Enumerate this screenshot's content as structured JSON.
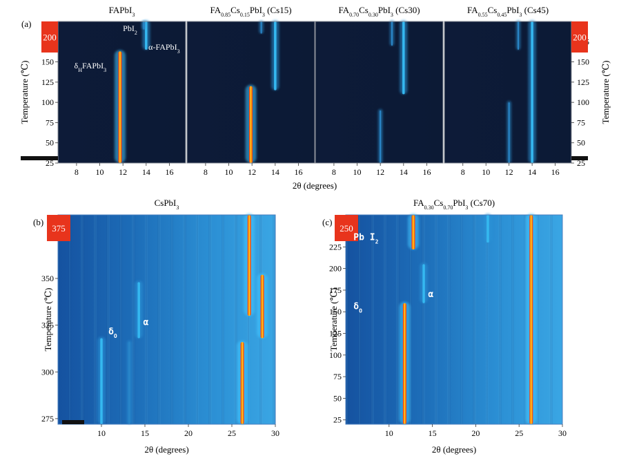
{
  "panel_labels": [
    "(a)",
    "(b)",
    "(c)"
  ],
  "chart_data": [
    {
      "type": "heatmap",
      "title": "FAPbI3",
      "title_parts": [
        [
          "FAPbI",
          ""
        ],
        [
          "3",
          "sub"
        ]
      ],
      "xlabel": "2θ (degrees)",
      "ylabel": "Temperature (℃)",
      "xlim": [
        6.4,
        17.4
      ],
      "ylim": [
        25,
        200
      ],
      "xticks": [
        8,
        10,
        12,
        14,
        16
      ],
      "yticks": [
        25,
        50,
        75,
        100,
        125,
        150,
        175
      ],
      "top_badge": "200",
      "annotations": [
        {
          "parts": [
            [
              "PbI",
              ""
            ],
            [
              "2",
              "sub"
            ]
          ],
          "x": 12.0,
          "y": 188
        },
        {
          "parts": [
            [
              "α-FAPbI",
              ""
            ],
            [
              "3",
              "sub"
            ]
          ],
          "x": 14.2,
          "y": 165
        },
        {
          "parts": [
            [
              "δ",
              ""
            ],
            [
              "H",
              "sub"
            ],
            [
              "FAPbI",
              ""
            ],
            [
              "3",
              "sub"
            ]
          ],
          "x": 7.8,
          "y": 142
        }
      ],
      "traces": [
        {
          "x": 11.75,
          "t_start": 25,
          "t_end": 163,
          "intensity": "very-strong"
        },
        {
          "x": 14.0,
          "t_start": 165,
          "t_end": 200,
          "intensity": "medium"
        },
        {
          "x": 13.8,
          "t_start": 190,
          "t_end": 200,
          "intensity": "weak"
        }
      ]
    },
    {
      "type": "heatmap",
      "title": "FA0.85Cs0.15PbI3 (Cs15)",
      "title_parts": [
        [
          "FA",
          ""
        ],
        [
          "0.85",
          "sub"
        ],
        [
          "Cs",
          ""
        ],
        [
          "0.15",
          "sub"
        ],
        [
          "PbI",
          ""
        ],
        [
          "3",
          "sub"
        ],
        [
          " (Cs15)",
          ""
        ]
      ],
      "xlabel": "2θ (degrees)",
      "ylabel": "Temperature (℃)",
      "xlim": [
        6.4,
        17.4
      ],
      "ylim": [
        25,
        200
      ],
      "xticks": [
        8,
        10,
        12,
        14,
        16
      ],
      "yticks": [
        25,
        50,
        75,
        100,
        125,
        150,
        175
      ],
      "traces": [
        {
          "x": 11.9,
          "t_start": 25,
          "t_end": 120,
          "intensity": "strong"
        },
        {
          "x": 14.0,
          "t_start": 115,
          "t_end": 200,
          "intensity": "medium"
        },
        {
          "x": 12.8,
          "t_start": 185,
          "t_end": 200,
          "intensity": "weak"
        }
      ]
    },
    {
      "type": "heatmap",
      "title": "FA0.70Cs0.30PbI3 (Cs30)",
      "title_parts": [
        [
          "FA",
          ""
        ],
        [
          "0.70",
          "sub"
        ],
        [
          "Cs",
          ""
        ],
        [
          "0.30",
          "sub"
        ],
        [
          "PbI",
          ""
        ],
        [
          "3",
          "sub"
        ],
        [
          " (Cs30)",
          ""
        ]
      ],
      "xlabel": "2θ (degrees)",
      "ylabel": "Temperature (℃)",
      "xlim": [
        6.4,
        17.4
      ],
      "ylim": [
        25,
        200
      ],
      "xticks": [
        8,
        10,
        12,
        14,
        16
      ],
      "yticks": [
        25,
        50,
        75,
        100,
        125,
        150,
        175
      ],
      "traces": [
        {
          "x": 14.0,
          "t_start": 110,
          "t_end": 200,
          "intensity": "medium"
        },
        {
          "x": 12.0,
          "t_start": 25,
          "t_end": 90,
          "intensity": "weak"
        },
        {
          "x": 13.0,
          "t_start": 170,
          "t_end": 200,
          "intensity": "weak"
        }
      ]
    },
    {
      "type": "heatmap",
      "title": "FA0.55Cs0.45PbI3 (Cs45)",
      "title_parts": [
        [
          "FA",
          ""
        ],
        [
          "0.55",
          "sub"
        ],
        [
          "Cs",
          ""
        ],
        [
          "0.45",
          "sub"
        ],
        [
          "PbI",
          ""
        ],
        [
          "3",
          "sub"
        ],
        [
          " (Cs45)",
          ""
        ]
      ],
      "xlabel": "2θ (degrees)",
      "ylabel": "Temperature (℃)",
      "xlim": [
        6.4,
        17.4
      ],
      "ylim": [
        25,
        200
      ],
      "xticks": [
        8,
        10,
        12,
        14,
        16
      ],
      "yticks": [
        25,
        50,
        75,
        100,
        125,
        150,
        175
      ],
      "top_badge": "200",
      "traces": [
        {
          "x": 14.0,
          "t_start": 25,
          "t_end": 200,
          "intensity": "medium"
        },
        {
          "x": 12.8,
          "t_start": 165,
          "t_end": 200,
          "intensity": "weak"
        },
        {
          "x": 12.0,
          "t_start": 25,
          "t_end": 100,
          "intensity": "weak"
        }
      ]
    },
    {
      "type": "heatmap",
      "title": "CsPbI3",
      "title_parts": [
        [
          "CsPbI",
          ""
        ],
        [
          "3",
          "sub"
        ]
      ],
      "xlabel": "2θ (degrees)",
      "ylabel": "Temperature (℃)",
      "xlim": [
        5,
        30
      ],
      "ylim": [
        272,
        384
      ],
      "xticks": [
        10,
        15,
        20,
        25,
        30
      ],
      "yticks": [
        275,
        300,
        325,
        350
      ],
      "top_badge": "375",
      "annotations": [
        {
          "parts": [
            [
              "δ",
              ""
            ],
            [
              "O",
              "sub"
            ]
          ],
          "x": 10.8,
          "y": 320
        },
        {
          "parts": [
            [
              "α",
              ""
            ]
          ],
          "x": 14.8,
          "y": 325
        }
      ],
      "traces": [
        {
          "x": 10.0,
          "t_start": 272,
          "t_end": 318,
          "intensity": "medium"
        },
        {
          "x": 13.2,
          "t_start": 272,
          "t_end": 316,
          "intensity": "weak"
        },
        {
          "x": 14.3,
          "t_start": 318,
          "t_end": 348,
          "intensity": "medium"
        },
        {
          "x": 26.2,
          "t_start": 272,
          "t_end": 316,
          "intensity": "very-strong"
        },
        {
          "x": 27.0,
          "t_start": 330,
          "t_end": 384,
          "intensity": "very-strong"
        },
        {
          "x": 28.5,
          "t_start": 318,
          "t_end": 352,
          "intensity": "very-strong"
        }
      ]
    },
    {
      "type": "heatmap",
      "title": "FA0.30Cs0.70PbI3 (Cs70)",
      "title_parts": [
        [
          "FA",
          ""
        ],
        [
          "0.30",
          "sub"
        ],
        [
          "Cs",
          ""
        ],
        [
          "0.70",
          "sub"
        ],
        [
          "PbI",
          ""
        ],
        [
          "3",
          "sub"
        ],
        [
          " (Cs70)",
          ""
        ]
      ],
      "xlabel": "2θ (degrees)",
      "ylabel": "Temperature (℃)",
      "xlim": [
        5,
        30
      ],
      "ylim": [
        20,
        262
      ],
      "xticks": [
        10,
        15,
        20,
        25,
        30
      ],
      "yticks": [
        25,
        50,
        75,
        100,
        125,
        150,
        175,
        200,
        225
      ],
      "top_badge": "250",
      "annotations": [
        {
          "parts": [
            [
              "Pb I",
              ""
            ],
            [
              "2",
              "sub"
            ]
          ],
          "x": 5.9,
          "y": 233
        },
        {
          "parts": [
            [
              "δ",
              ""
            ],
            [
              "O",
              "sub"
            ]
          ],
          "x": 5.9,
          "y": 153
        },
        {
          "parts": [
            [
              "α",
              ""
            ]
          ],
          "x": 14.5,
          "y": 167
        }
      ],
      "traces": [
        {
          "x": 11.8,
          "t_start": 20,
          "t_end": 160,
          "intensity": "very-strong"
        },
        {
          "x": 12.8,
          "t_start": 222,
          "t_end": 262,
          "intensity": "very-strong"
        },
        {
          "x": 14.0,
          "t_start": 160,
          "t_end": 205,
          "intensity": "medium"
        },
        {
          "x": 26.4,
          "t_start": 20,
          "t_end": 262,
          "intensity": "very-strong"
        },
        {
          "x": 21.4,
          "t_start": 230,
          "t_end": 262,
          "intensity": "medium"
        }
      ]
    }
  ]
}
